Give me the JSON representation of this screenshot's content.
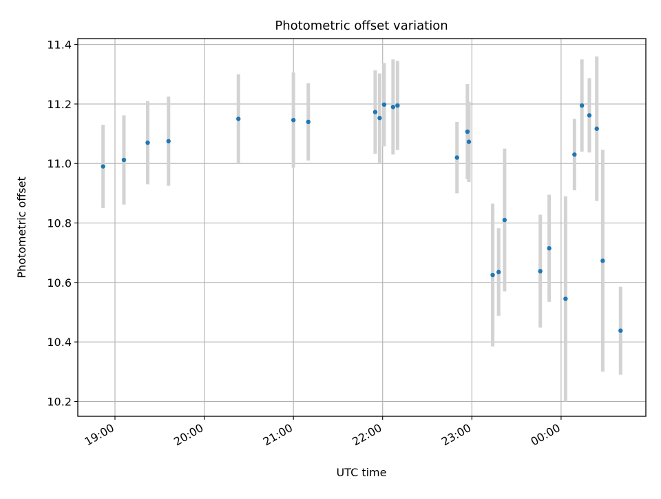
{
  "chart_data": {
    "type": "scatter",
    "title": "Photometric offset variation",
    "xlabel": "UTC time",
    "ylabel": "Photometric offset",
    "x_axis_kind": "time",
    "grid": true,
    "xlim": [
      "18:35",
      "00:57"
    ],
    "ylim": [
      10.15,
      11.42
    ],
    "x_ticks": [
      "19:00",
      "20:00",
      "21:00",
      "22:00",
      "23:00",
      "00:00"
    ],
    "y_ticks": [
      "10.2",
      "10.4",
      "10.6",
      "10.8",
      "11.0",
      "11.2",
      "11.4"
    ],
    "colors": {
      "point": "#1f77b4",
      "errorbar": "#d3d3d3",
      "grid": "#b0b0b0"
    },
    "points": [
      {
        "x": "18:52",
        "y": 10.99,
        "yerr": 0.14
      },
      {
        "x": "19:06",
        "y": 11.012,
        "yerr": 0.15
      },
      {
        "x": "19:22",
        "y": 11.07,
        "yerr": 0.14
      },
      {
        "x": "19:36",
        "y": 11.075,
        "yerr": 0.15
      },
      {
        "x": "20:23",
        "y": 11.15,
        "yerr": 0.15
      },
      {
        "x": "21:00",
        "y": 11.146,
        "yerr": 0.16
      },
      {
        "x": "21:10",
        "y": 11.14,
        "yerr": 0.13
      },
      {
        "x": "21:55",
        "y": 11.173,
        "yerr": 0.14
      },
      {
        "x": "21:58",
        "y": 11.153,
        "yerr": 0.15
      },
      {
        "x": "22:01",
        "y": 11.198,
        "yerr": 0.14
      },
      {
        "x": "22:07",
        "y": 11.19,
        "yerr": 0.16
      },
      {
        "x": "22:10",
        "y": 11.195,
        "yerr": 0.15
      },
      {
        "x": "22:50",
        "y": 11.02,
        "yerr": 0.12
      },
      {
        "x": "22:57",
        "y": 11.107,
        "yerr": 0.16
      },
      {
        "x": "22:58",
        "y": 11.073,
        "yerr": 0.135
      },
      {
        "x": "23:14",
        "y": 10.625,
        "yerr": 0.24
      },
      {
        "x": "23:18",
        "y": 10.635,
        "yerr": 0.147
      },
      {
        "x": "23:22",
        "y": 10.81,
        "yerr": 0.24
      },
      {
        "x": "23:46",
        "y": 10.638,
        "yerr": 0.19
      },
      {
        "x": "23:52",
        "y": 10.715,
        "yerr": 0.18
      },
      {
        "x": "00:03",
        "y": 10.545,
        "yerr": 0.345
      },
      {
        "x": "00:09",
        "y": 11.03,
        "yerr": 0.12
      },
      {
        "x": "00:14",
        "y": 11.195,
        "yerr": 0.155
      },
      {
        "x": "00:19",
        "y": 11.162,
        "yerr": 0.125
      },
      {
        "x": "00:24",
        "y": 11.117,
        "yerr": 0.243
      },
      {
        "x": "00:28",
        "y": 10.673,
        "yerr": 0.373
      },
      {
        "x": "00:40",
        "y": 10.438,
        "yerr": 0.148
      }
    ]
  }
}
